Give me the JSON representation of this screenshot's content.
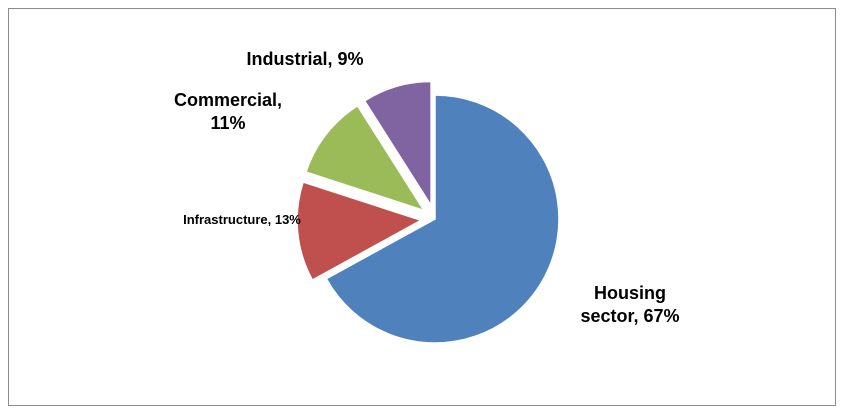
{
  "chart_data": {
    "type": "pie",
    "values": [
      67,
      13,
      11,
      9
    ],
    "value_labels": [
      "Housing sector, 67%",
      "Infrastructure, 13%",
      "Commercial, 11%",
      "Industrial, 9%"
    ],
    "colors": [
      "#4f81bd",
      "#c0504d",
      "#9bbb59",
      "#8064a2"
    ],
    "exploded": [
      false,
      true,
      true,
      true
    ]
  }
}
